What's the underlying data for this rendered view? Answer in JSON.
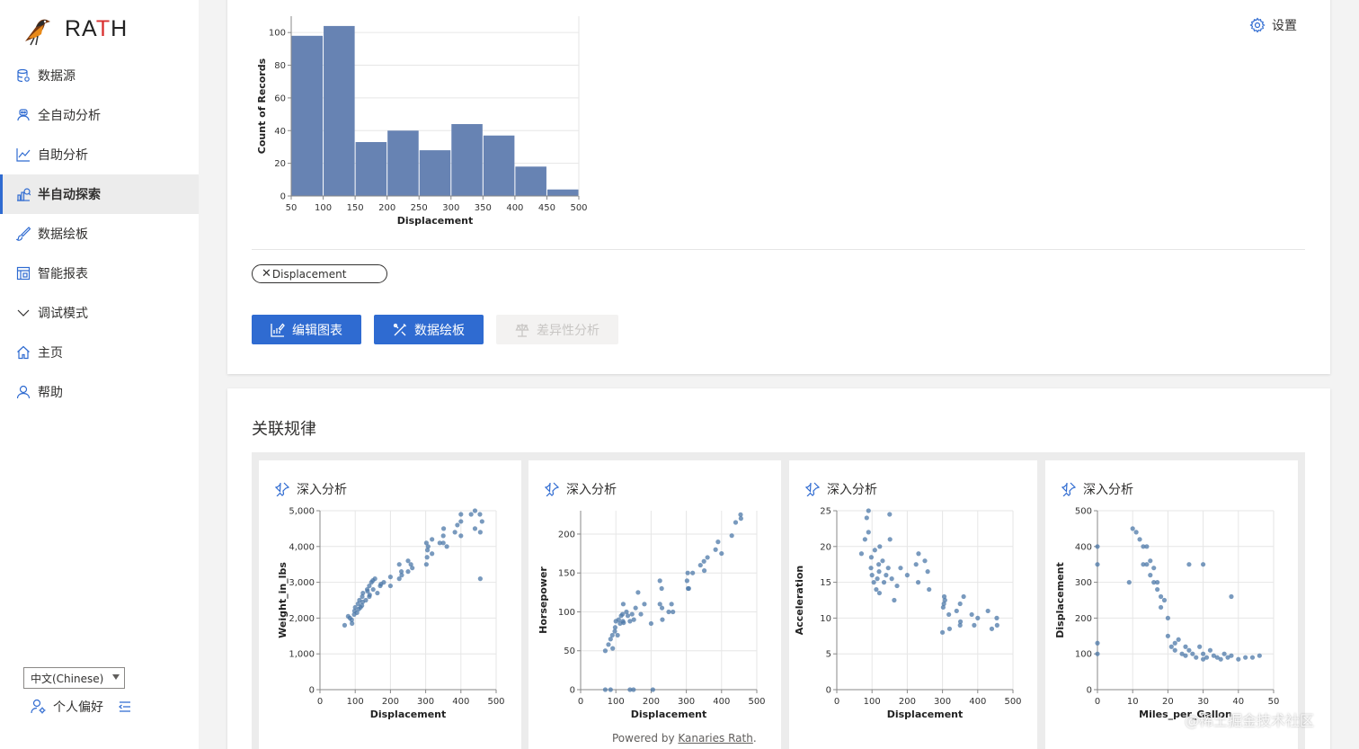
{
  "app": {
    "logo_text": "RATH"
  },
  "sidebar": {
    "items": [
      {
        "label": "数据源",
        "icon": "database-icon"
      },
      {
        "label": "全自动分析",
        "icon": "robot-icon"
      },
      {
        "label": "自助分析",
        "icon": "line-chart-icon"
      },
      {
        "label": "半自动探索",
        "icon": "explore-icon",
        "active": true
      },
      {
        "label": "数据绘板",
        "icon": "brush-icon"
      },
      {
        "label": "智能报表",
        "icon": "report-icon"
      },
      {
        "label": "调试模式",
        "icon": "chevron-down-icon"
      },
      {
        "label": "主页",
        "icon": "home-icon"
      },
      {
        "label": "帮助",
        "icon": "help-user-icon"
      }
    ],
    "language": "中文(Chinese)",
    "preferences_label": "个人偏好"
  },
  "header": {
    "settings_label": "设置"
  },
  "main_chart": {
    "filter_tag": "Displacement",
    "buttons": {
      "edit_chart": "编辑图表",
      "data_painter": "数据绘板",
      "diff_analysis": "差异性分析"
    }
  },
  "association": {
    "title": "关联规律",
    "pin_label": "深入分析"
  },
  "footer": {
    "prefix": "Powered by ",
    "link": "Kanaries Rath",
    "suffix": "."
  },
  "watermark": "@稀土掘金技术社区",
  "colors": {
    "accent": "#2f6bd1",
    "mark": "#4c78a8",
    "bar": "#6783b3"
  },
  "chart_data": [
    {
      "type": "bar",
      "xlabel": "Displacement",
      "ylabel": "Count of Records",
      "x_ticks": [
        50,
        100,
        150,
        200,
        250,
        300,
        350,
        400,
        450,
        500
      ],
      "y_ticks": [
        0,
        20,
        40,
        60,
        80,
        100
      ],
      "xlim": [
        50,
        500
      ],
      "ylim": [
        0,
        110
      ],
      "bins": [
        {
          "x0": 50,
          "x1": 100,
          "count": 98
        },
        {
          "x0": 100,
          "x1": 150,
          "count": 104
        },
        {
          "x0": 150,
          "x1": 200,
          "count": 33
        },
        {
          "x0": 200,
          "x1": 250,
          "count": 40
        },
        {
          "x0": 250,
          "x1": 300,
          "count": 28
        },
        {
          "x0": 300,
          "x1": 350,
          "count": 44
        },
        {
          "x0": 350,
          "x1": 400,
          "count": 37
        },
        {
          "x0": 400,
          "x1": 450,
          "count": 18
        },
        {
          "x0": 450,
          "x1": 500,
          "count": 4
        }
      ]
    },
    {
      "type": "scatter",
      "xlabel": "Displacement",
      "ylabel": "Weight_in_lbs",
      "x_ticks": [
        0,
        100,
        200,
        300,
        400,
        500
      ],
      "y_ticks": [
        0,
        1000,
        2000,
        3000,
        4000,
        5000
      ],
      "y_tick_labels": [
        "0",
        "1,000",
        "2,000",
        "3,000",
        "4,000",
        "5,000"
      ],
      "xlim": [
        0,
        500
      ],
      "ylim": [
        0,
        5000
      ],
      "points": [
        [
          70,
          1800
        ],
        [
          85,
          2000
        ],
        [
          90,
          1950
        ],
        [
          97,
          2100
        ],
        [
          98,
          2200
        ],
        [
          100,
          2300
        ],
        [
          105,
          2150
        ],
        [
          108,
          2400
        ],
        [
          110,
          2250
        ],
        [
          112,
          2500
        ],
        [
          115,
          2300
        ],
        [
          120,
          2600
        ],
        [
          121,
          2450
        ],
        [
          122,
          2700
        ],
        [
          130,
          2500
        ],
        [
          134,
          2800
        ],
        [
          140,
          2900
        ],
        [
          141,
          2650
        ],
        [
          146,
          3000
        ],
        [
          151,
          2800
        ],
        [
          156,
          3100
        ],
        [
          163,
          2700
        ],
        [
          171,
          2900
        ],
        [
          181,
          3000
        ],
        [
          200,
          2900
        ],
        [
          225,
          3100
        ],
        [
          231,
          3300
        ],
        [
          232,
          3200
        ],
        [
          250,
          3300
        ],
        [
          258,
          3500
        ],
        [
          262,
          3400
        ],
        [
          302,
          3500
        ],
        [
          304,
          3700
        ],
        [
          305,
          3900
        ],
        [
          307,
          4000
        ],
        [
          318,
          4200
        ],
        [
          340,
          4100
        ],
        [
          350,
          4300
        ],
        [
          351,
          4500
        ],
        [
          360,
          4000
        ],
        [
          383,
          4400
        ],
        [
          390,
          4600
        ],
        [
          400,
          4700
        ],
        [
          400,
          4300
        ],
        [
          429,
          4900
        ],
        [
          440,
          4500
        ],
        [
          454,
          4900
        ],
        [
          455,
          4400
        ],
        [
          455,
          3100
        ],
        [
          460,
          4700
        ],
        [
          80,
          2050
        ],
        [
          91,
          1850
        ],
        [
          119,
          2350
        ],
        [
          135,
          2750
        ],
        [
          140,
          2600
        ],
        [
          150,
          3050
        ],
        [
          173,
          2950
        ],
        [
          200,
          3150
        ],
        [
          225,
          3500
        ],
        [
          250,
          3600
        ],
        [
          302,
          4100
        ],
        [
          318,
          3800
        ],
        [
          350,
          4100
        ],
        [
          400,
          4900
        ],
        [
          440,
          5000
        ]
      ]
    },
    {
      "type": "scatter",
      "xlabel": "Displacement",
      "ylabel": "Horsepower",
      "x_ticks": [
        0,
        100,
        200,
        300,
        400,
        500
      ],
      "y_ticks": [
        0,
        50,
        100,
        150,
        200
      ],
      "y_tick_labels": [
        "0",
        "50",
        "100",
        "150",
        "200"
      ],
      "xlim": [
        0,
        500
      ],
      "ylim": [
        0,
        230
      ],
      "points": [
        [
          70,
          50
        ],
        [
          79,
          58
        ],
        [
          85,
          65
        ],
        [
          90,
          70
        ],
        [
          91,
          53
        ],
        [
          97,
          75
        ],
        [
          98,
          80
        ],
        [
          100,
          88
        ],
        [
          105,
          70
        ],
        [
          108,
          90
        ],
        [
          112,
          85
        ],
        [
          115,
          95
        ],
        [
          119,
          97
        ],
        [
          120,
          88
        ],
        [
          121,
          110
        ],
        [
          122,
          86
        ],
        [
          130,
          100
        ],
        [
          134,
          95
        ],
        [
          140,
          88
        ],
        [
          146,
          97
        ],
        [
          151,
          90
        ],
        [
          156,
          105
        ],
        [
          163,
          125
        ],
        [
          171,
          97
        ],
        [
          181,
          110
        ],
        [
          200,
          85
        ],
        [
          225,
          110
        ],
        [
          231,
          105
        ],
        [
          232,
          90
        ],
        [
          250,
          100
        ],
        [
          258,
          110
        ],
        [
          262,
          100
        ],
        [
          302,
          140
        ],
        [
          304,
          150
        ],
        [
          305,
          130
        ],
        [
          307,
          130
        ],
        [
          318,
          150
        ],
        [
          340,
          160
        ],
        [
          350,
          165
        ],
        [
          351,
          153
        ],
        [
          360,
          170
        ],
        [
          383,
          180
        ],
        [
          390,
          190
        ],
        [
          400,
          175
        ],
        [
          429,
          198
        ],
        [
          440,
          215
        ],
        [
          454,
          225
        ],
        [
          455,
          220
        ],
        [
          70,
          0
        ],
        [
          85,
          0
        ],
        [
          140,
          0
        ],
        [
          150,
          0
        ],
        [
          205,
          0
        ],
        [
          230,
          130
        ],
        [
          225,
          140
        ]
      ]
    },
    {
      "type": "scatter",
      "xlabel": "Displacement",
      "ylabel": "Acceleration",
      "x_ticks": [
        0,
        100,
        200,
        300,
        400,
        500
      ],
      "y_ticks": [
        0,
        5,
        10,
        15,
        20,
        25
      ],
      "y_tick_labels": [
        "0",
        "5",
        "10",
        "15",
        "20",
        "25"
      ],
      "xlim": [
        0,
        500
      ],
      "ylim": [
        0,
        25
      ],
      "points": [
        [
          70,
          19
        ],
        [
          80,
          21
        ],
        [
          85,
          24
        ],
        [
          90,
          22
        ],
        [
          97,
          17
        ],
        [
          98,
          18.5
        ],
        [
          100,
          16
        ],
        [
          105,
          15
        ],
        [
          108,
          19.5
        ],
        [
          112,
          14
        ],
        [
          115,
          15.5
        ],
        [
          119,
          17.5
        ],
        [
          120,
          16.5
        ],
        [
          121,
          13.5
        ],
        [
          122,
          20
        ],
        [
          130,
          18
        ],
        [
          134,
          15
        ],
        [
          140,
          16
        ],
        [
          146,
          17
        ],
        [
          151,
          21
        ],
        [
          156,
          15.5
        ],
        [
          163,
          12.5
        ],
        [
          171,
          14.5
        ],
        [
          181,
          17
        ],
        [
          200,
          16
        ],
        [
          225,
          17.5
        ],
        [
          231,
          15
        ],
        [
          232,
          19
        ],
        [
          250,
          18
        ],
        [
          258,
          16.5
        ],
        [
          262,
          14
        ],
        [
          302,
          11.5
        ],
        [
          304,
          12
        ],
        [
          305,
          13
        ],
        [
          307,
          12.5
        ],
        [
          318,
          10.5
        ],
        [
          340,
          11
        ],
        [
          350,
          12
        ],
        [
          351,
          9.5
        ],
        [
          360,
          13
        ],
        [
          383,
          10.5
        ],
        [
          390,
          9
        ],
        [
          400,
          10
        ],
        [
          429,
          11
        ],
        [
          440,
          8.5
        ],
        [
          454,
          10
        ],
        [
          455,
          9
        ],
        [
          300,
          8
        ],
        [
          320,
          8.5
        ],
        [
          350,
          9
        ],
        [
          150,
          24.5
        ],
        [
          90,
          25
        ]
      ]
    },
    {
      "type": "scatter",
      "xlabel": "Miles_per_Gallon",
      "ylabel": "Displacement",
      "x_ticks": [
        0,
        10,
        20,
        30,
        40,
        50
      ],
      "y_ticks": [
        0,
        100,
        200,
        300,
        400,
        500
      ],
      "y_tick_labels": [
        "0",
        "100",
        "200",
        "300",
        "400",
        "500"
      ],
      "xlim": [
        0,
        50
      ],
      "ylim": [
        0,
        500
      ],
      "points": [
        [
          9,
          300
        ],
        [
          10,
          450
        ],
        [
          11,
          440
        ],
        [
          12,
          420
        ],
        [
          13,
          400
        ],
        [
          13,
          350
        ],
        [
          14,
          350
        ],
        [
          14,
          400
        ],
        [
          15,
          360
        ],
        [
          15,
          320
        ],
        [
          16,
          300
        ],
        [
          16,
          340
        ],
        [
          17,
          300
        ],
        [
          17,
          280
        ],
        [
          18,
          260
        ],
        [
          18,
          230
        ],
        [
          19,
          250
        ],
        [
          20,
          200
        ],
        [
          20,
          150
        ],
        [
          21,
          120
        ],
        [
          22,
          130
        ],
        [
          22,
          110
        ],
        [
          23,
          140
        ],
        [
          24,
          100
        ],
        [
          25,
          120
        ],
        [
          25,
          95
        ],
        [
          26,
          110
        ],
        [
          27,
          100
        ],
        [
          28,
          90
        ],
        [
          29,
          120
        ],
        [
          30,
          100
        ],
        [
          30,
          85
        ],
        [
          31,
          90
        ],
        [
          32,
          110
        ],
        [
          33,
          95
        ],
        [
          34,
          90
        ],
        [
          35,
          85
        ],
        [
          36,
          100
        ],
        [
          37,
          90
        ],
        [
          38,
          95
        ],
        [
          40,
          85
        ],
        [
          42,
          90
        ],
        [
          44,
          90
        ],
        [
          46,
          95
        ],
        [
          26,
          350
        ],
        [
          30,
          350
        ],
        [
          38,
          260
        ],
        [
          0,
          400
        ],
        [
          0,
          350
        ],
        [
          0,
          100
        ],
        [
          0,
          130
        ]
      ]
    }
  ]
}
